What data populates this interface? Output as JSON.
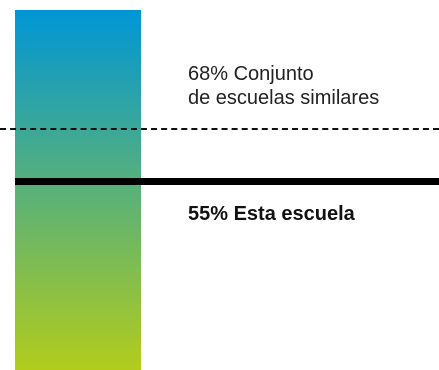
{
  "chart_data": {
    "type": "gauge",
    "gradient": {
      "top_color": "#0096d6",
      "bottom_color": "#b2cc1c"
    },
    "markers": [
      {
        "value": 68,
        "unit": "%",
        "label_line1": "68% Conjunto",
        "label_line2": "de escuelas similares",
        "line_style": "dashed",
        "color": "#111111"
      },
      {
        "value": 55,
        "unit": "%",
        "label": "55% Esta escuela",
        "line_style": "solid",
        "color": "#000000"
      }
    ]
  }
}
